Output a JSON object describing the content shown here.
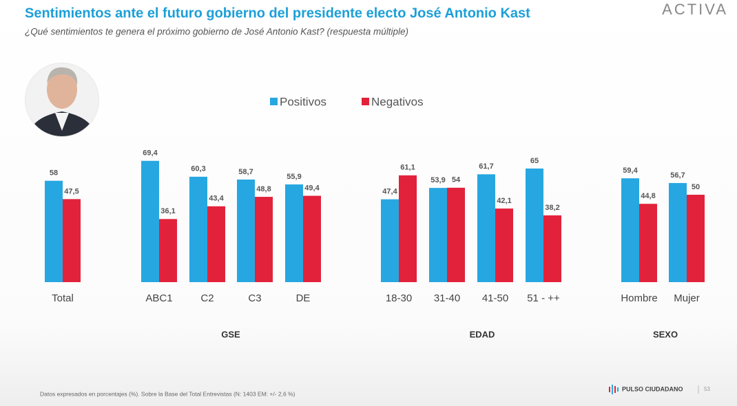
{
  "header": {
    "title": "Sentimientos ante el futuro gobierno del presidente electo  José Antonio Kast",
    "subtitle": "¿Qué sentimientos te genera el próximo gobierno de José Antonio Kast? (respuesta múltiple)",
    "brand": "ACTIVA"
  },
  "chart_data": {
    "type": "bar",
    "categories": [
      "Total",
      "ABC1",
      "C2",
      "C3",
      "DE",
      "18-30",
      "31-40",
      "41-50",
      "51 - ++",
      "Hombre",
      "Mujer"
    ],
    "groups": [
      "GSE",
      "EDAD",
      "SEXO"
    ],
    "series": [
      {
        "name": "Positivos",
        "color": "#27a7e1",
        "values": [
          58,
          69.4,
          60.3,
          58.7,
          55.9,
          47.4,
          53.9,
          61.7,
          65,
          59.4,
          56.7
        ],
        "value_labels": [
          "58",
          "69,4",
          "60,3",
          "58,7",
          "55,9",
          "47,4",
          "53,9",
          "61,7",
          "65",
          "59,4",
          "56,7"
        ]
      },
      {
        "name": "Negativos",
        "color": "#e2223b",
        "values": [
          47.5,
          36.1,
          43.4,
          48.8,
          49.4,
          61.1,
          54,
          42.1,
          38.2,
          44.8,
          50
        ],
        "value_labels": [
          "47,5",
          "36,1",
          "43,4",
          "48,8",
          "49,4",
          "61,1",
          "54",
          "42,1",
          "38,2",
          "44,8",
          "50"
        ]
      }
    ]
  },
  "footer": {
    "note": "Datos expresados en porcentajes (%). Sobre la Base del Total Entrevistas (N: 1403  EM: +/- 2,6 %)",
    "logo": "PULSO CIUDADANO",
    "page": "53"
  }
}
